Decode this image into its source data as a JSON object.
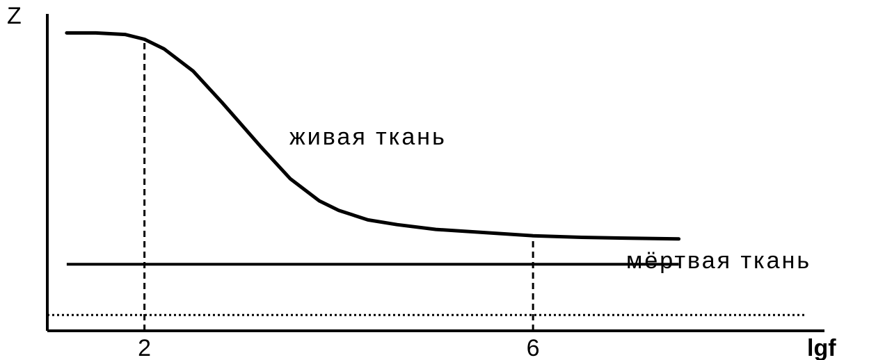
{
  "chart_data": {
    "type": "line",
    "title": "",
    "xlabel": "lgf",
    "ylabel": "Z",
    "xlim": [
      1,
      9
    ],
    "ylim": [
      0,
      100
    ],
    "xticks": [
      2,
      6
    ],
    "grid": false,
    "series": [
      {
        "name": "живая ткань",
        "x": [
          1.2,
          1.5,
          1.8,
          2.0,
          2.2,
          2.5,
          2.8,
          3.2,
          3.5,
          3.8,
          4.0,
          4.3,
          4.6,
          5.0,
          5.5,
          6.0,
          6.5,
          7.0,
          7.5
        ],
        "y": [
          94,
          94,
          93.5,
          92,
          89,
          82,
          72,
          58,
          48,
          41,
          38,
          35,
          33.5,
          32,
          31,
          30,
          29.5,
          29.2,
          29
        ]
      },
      {
        "name": "мёртвая ткань",
        "x": [
          1.2,
          7.5
        ],
        "y": [
          21,
          21
        ]
      },
      {
        "name": "",
        "style": "dotted",
        "x": [
          1.0,
          8.8
        ],
        "y": [
          5,
          5
        ]
      }
    ],
    "reference_lines": [
      {
        "style": "dashed",
        "x": 2,
        "y": [
          0,
          92
        ]
      },
      {
        "style": "dashed",
        "x": 6,
        "y": [
          0,
          30
        ]
      }
    ],
    "labels": {
      "live": "живая ткань",
      "dead": "мёртвая ткань"
    }
  }
}
